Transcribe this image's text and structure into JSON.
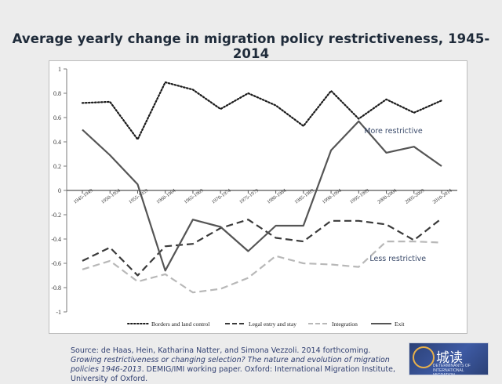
{
  "slide": {
    "title": "Average yearly change in migration policy restrictiveness, 1945-2014",
    "source": {
      "prefix": "Source: de Haas, Hein, Katharina Natter, and Simona Vezzoli. 2014 forthcoming. ",
      "title_italic": "Growing restrictiveness or  changing selection? The nature and evolution of migration policies 1946-2013",
      "suffix": ". DEMIG/IMI working paper. Oxford:  International Migration Institute, University of Oxford."
    },
    "logo": {
      "watermark": "城读",
      "text": "DETERMINANTS OF INTERNATIONAL MIGRATION"
    }
  },
  "chart_data": {
    "type": "line",
    "categories": [
      "1945-1949",
      "1950-1954",
      "1955-1959",
      "1960-1964",
      "1965-1969",
      "1970-1974",
      "1975-1979",
      "1980-1984",
      "1985-1989",
      "1990-1994",
      "1995-1999",
      "2000-2004",
      "2005-2009",
      "2010-2014"
    ],
    "ylim": [
      -1,
      1
    ],
    "yticks": [
      "1",
      "0.8",
      "0.6",
      "0.4",
      "0.2",
      "0",
      "-0.2",
      "-0.4",
      "-0.6",
      "-0.8",
      "-1"
    ],
    "ytick_values": [
      1,
      0.8,
      0.6,
      0.4,
      0.2,
      0,
      -0.2,
      -0.4,
      -0.6,
      -0.8,
      -1
    ],
    "series": [
      {
        "name": "Borders and land control",
        "style": "dotted",
        "color": "#1a1a1a",
        "values": [
          0.72,
          0.73,
          0.42,
          0.89,
          0.83,
          0.67,
          0.8,
          0.7,
          0.53,
          0.82,
          0.59,
          0.75,
          0.64,
          0.74
        ]
      },
      {
        "name": "Legal entry and stay",
        "style": "dashed",
        "color": "#3a3a3a",
        "values": [
          -0.58,
          -0.47,
          -0.7,
          -0.46,
          -0.44,
          -0.31,
          -0.24,
          -0.39,
          -0.42,
          -0.25,
          -0.25,
          -0.28,
          -0.41,
          -0.23
        ]
      },
      {
        "name": "Integration",
        "style": "dashed-light",
        "color": "#b8b8b8",
        "values": [
          -0.65,
          -0.58,
          -0.75,
          -0.69,
          -0.84,
          -0.81,
          -0.72,
          -0.54,
          -0.6,
          -0.61,
          -0.63,
          -0.42,
          -0.42,
          -0.43
        ]
      },
      {
        "name": "Exit",
        "style": "solid",
        "color": "#555555",
        "values": [
          0.5,
          0.29,
          0.05,
          -0.66,
          -0.24,
          -0.3,
          -0.5,
          -0.29,
          -0.29,
          0.33,
          0.57,
          0.31,
          0.36,
          0.2
        ]
      }
    ],
    "annotations": [
      {
        "text": "More restrictive",
        "at": {
          "category": 10.2,
          "y": 0.47
        }
      },
      {
        "text": "Less restrictive",
        "at": {
          "category": 10.4,
          "y": -0.58
        }
      }
    ],
    "legend_position": "bottom",
    "grid": false
  }
}
